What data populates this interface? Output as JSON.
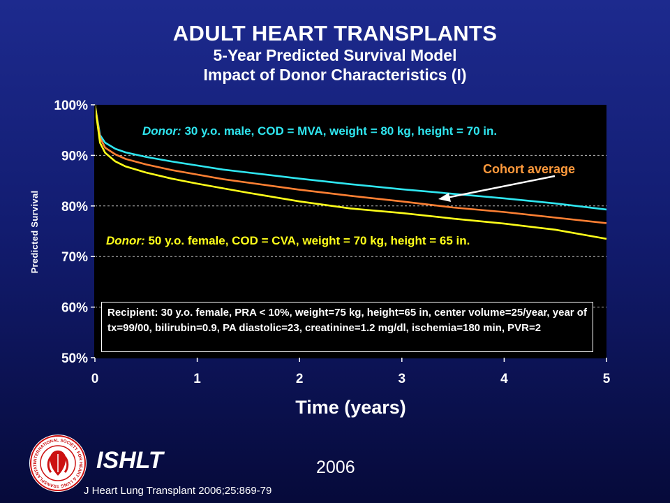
{
  "header": {
    "title": "ADULT HEART TRANSPLANTS",
    "subtitle1": "5-Year Predicted Survival Model",
    "subtitle2": "Impact of Donor Characteristics (I)"
  },
  "chart_data": {
    "type": "line",
    "xlabel": "Time (years)",
    "ylabel": "Predicted Survival",
    "xlim": [
      0,
      5
    ],
    "ylim": [
      50,
      100
    ],
    "x_ticks": [
      "0",
      "1",
      "2",
      "3",
      "4",
      "5"
    ],
    "y_ticks": [
      "50%",
      "60%",
      "70%",
      "80%",
      "90%",
      "100%"
    ],
    "grid": "horizontal dashed",
    "series": [
      {
        "color": "#2fe6f0",
        "x": [
          0,
          0.05,
          0.1,
          0.2,
          0.3,
          0.5,
          0.75,
          1,
          1.25,
          1.5,
          2,
          2.5,
          3,
          3.5,
          4,
          4.5,
          5
        ],
        "y": [
          100,
          94,
          92.5,
          91.3,
          90.6,
          89.7,
          88.8,
          88.0,
          87.2,
          86.6,
          85.4,
          84.3,
          83.3,
          82.4,
          81.5,
          80.5,
          79.3
        ]
      },
      {
        "name": "Cohort average",
        "color": "#ff8033",
        "x": [
          0,
          0.05,
          0.1,
          0.2,
          0.3,
          0.5,
          0.75,
          1,
          1.25,
          1.5,
          2,
          2.5,
          3,
          3.5,
          4,
          4.5,
          5
        ],
        "y": [
          100,
          93.5,
          91.5,
          90.2,
          89.3,
          88.2,
          87.1,
          86.2,
          85.3,
          84.6,
          83.2,
          82.0,
          80.9,
          79.7,
          78.8,
          77.7,
          76.6
        ]
      },
      {
        "color": "#ffff1a",
        "x": [
          0,
          0.05,
          0.1,
          0.2,
          0.3,
          0.5,
          0.75,
          1,
          1.25,
          1.5,
          2,
          2.5,
          3,
          3.5,
          4,
          4.5,
          5
        ],
        "y": [
          100,
          92.5,
          90.5,
          88.8,
          87.8,
          86.6,
          85.4,
          84.4,
          83.5,
          82.6,
          80.9,
          79.5,
          78.6,
          77.5,
          76.5,
          75.3,
          73.5
        ]
      }
    ],
    "annotations": {
      "top_lead": "Donor:",
      "top_text": "30 y.o. male, COD = MVA, weight = 80 kg, height = 70 in.",
      "bottom_lead": "Donor:",
      "bottom_text": "50 y.o. female, COD = CVA, weight = 70 kg, height = 65 in.",
      "cohort_label": "Cohort average",
      "recipient": "Recipient: 30 y.o. female, PRA < 10%, weight=75 kg, height=65 in, center volume=25/year, year of tx=99/00, bilirubin=0.9, PA diastolic=23, creatinine=1.2 mg/dl, ischemia=180 min, PVR=2"
    },
    "arrow_color": "#ffffff",
    "plot_background": "#000000"
  },
  "footer": {
    "org": "ISHLT",
    "year": "2006",
    "citation": "J Heart Lung Transplant 2006;25:869-79",
    "logo_ring_text": "INTERNATIONAL SOCIETY FOR HEART & LUNG TRANSPLANTATION",
    "logo_color": "#cc1010"
  }
}
